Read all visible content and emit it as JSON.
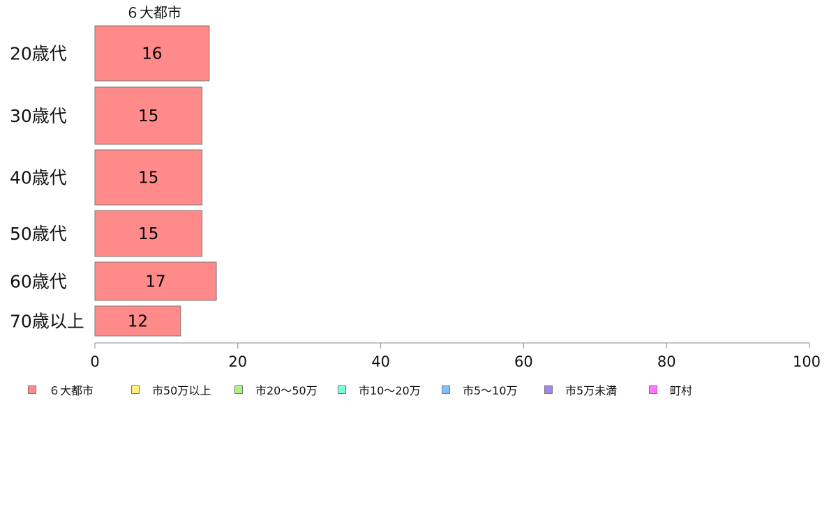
{
  "chart_data": {
    "type": "bar",
    "orientation": "horizontal",
    "stacked": true,
    "top_category_label": "６大都市",
    "categories": [
      "20歳代",
      "30歳代",
      "40歳代",
      "50歳代",
      "60歳代",
      "70歳以上"
    ],
    "series": [
      {
        "name": "６大都市",
        "color": "#ff8a8a",
        "values": [
          16,
          15,
          15,
          15,
          17,
          12
        ]
      },
      {
        "name": "市50万以上",
        "color": "#ffee80",
        "values": [
          null,
          null,
          null,
          null,
          null,
          null
        ]
      },
      {
        "name": "市20～50万",
        "color": "#a8f47a",
        "values": [
          null,
          null,
          null,
          null,
          null,
          null
        ]
      },
      {
        "name": "市10～20万",
        "color": "#80ffd0",
        "values": [
          null,
          null,
          null,
          null,
          null,
          null
        ]
      },
      {
        "name": "市5～10万",
        "color": "#80c4ff",
        "values": [
          null,
          null,
          null,
          null,
          null,
          null
        ]
      },
      {
        "name": "市5万未満",
        "color": "#a385f2",
        "values": [
          null,
          null,
          null,
          null,
          null,
          null
        ]
      },
      {
        "name": "町村",
        "color": "#ff77ff",
        "values": [
          null,
          null,
          null,
          null,
          null,
          null
        ]
      }
    ],
    "data_labels": [
      "16",
      "15",
      "15",
      "15",
      "17",
      "12"
    ],
    "xlim": [
      0,
      100
    ],
    "xticks": [
      0,
      20,
      40,
      60,
      80,
      100
    ],
    "xtick_labels": [
      "0",
      "20",
      "40",
      "60",
      "80",
      "100"
    ],
    "grid": false,
    "legend_position": "bottom"
  }
}
